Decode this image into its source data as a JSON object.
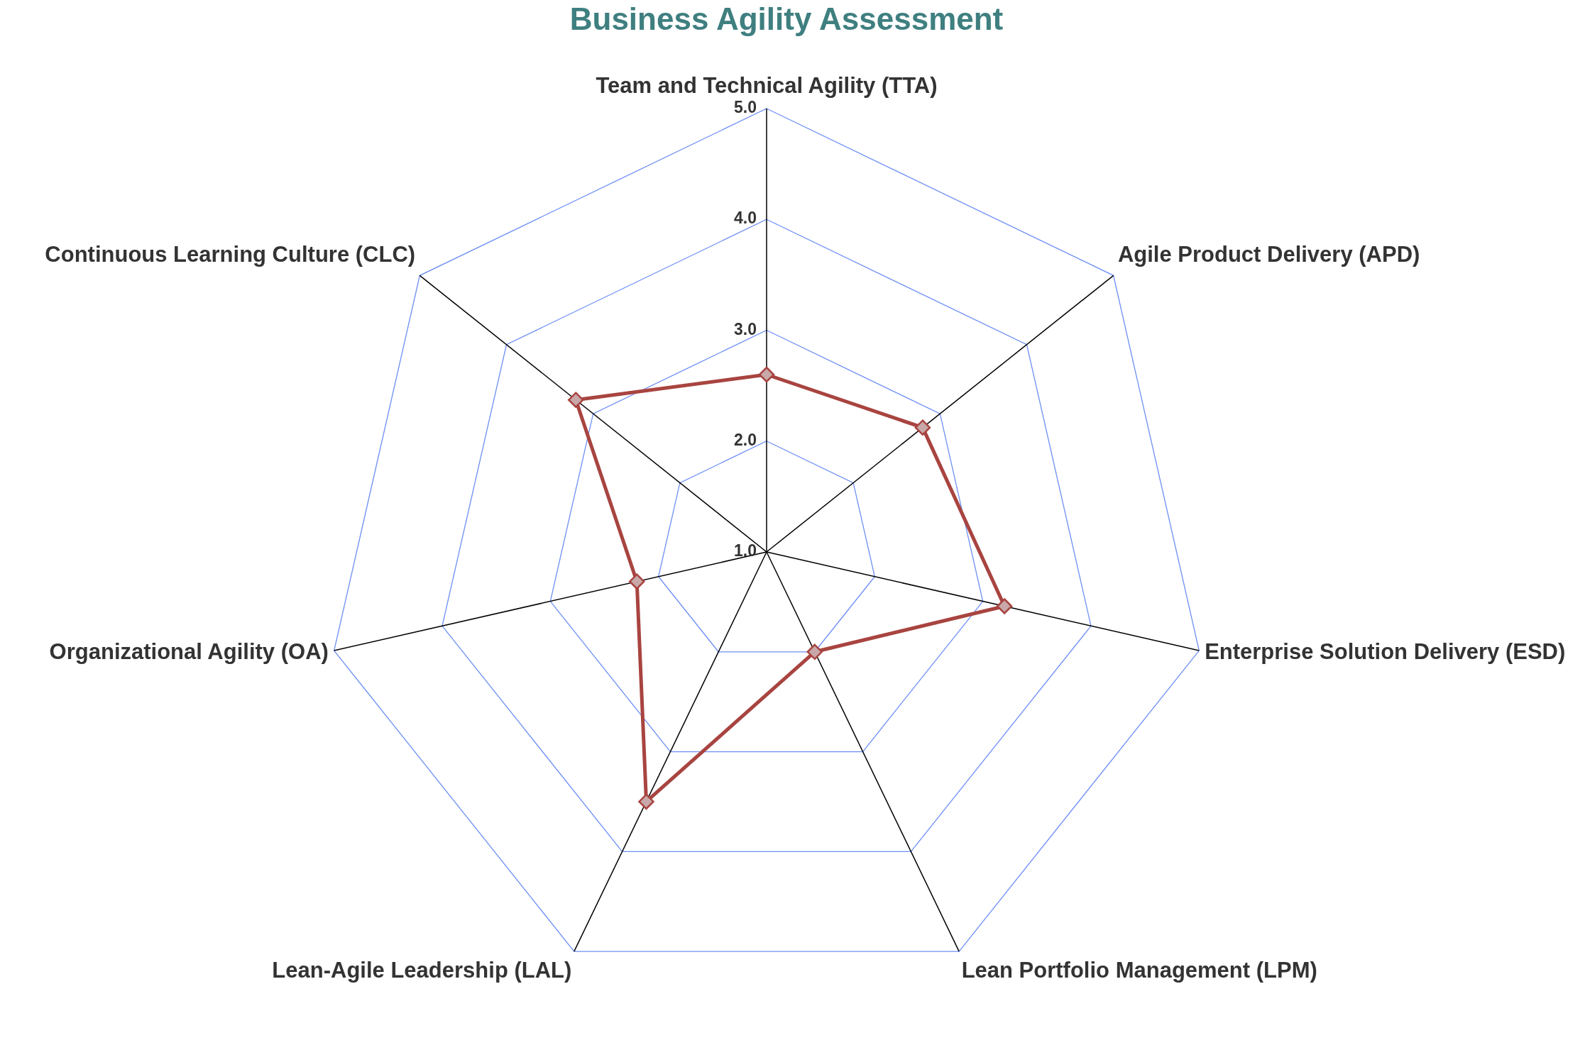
{
  "chart_data": {
    "type": "radar",
    "title": "Business Agility Assessment",
    "categories": [
      "Team and Technical Agility (TTA)",
      "Agile Product Delivery (APD)",
      "Enterprise Solution Delivery (ESD)",
      "Lean Portfolio Management (LPM)",
      "Lean-Agile Leadership (LAL)",
      "Organizational Agility (OA)",
      "Continuous Learning Culture (CLC)"
    ],
    "series": [
      {
        "color": "#a84440",
        "values": [
          2.6,
          2.8,
          3.2,
          2.0,
          3.5,
          2.2,
          3.2
        ]
      }
    ],
    "ylim": [
      1,
      5
    ],
    "yticks": [
      {
        "value": 1,
        "label": "1.0"
      },
      {
        "value": 2,
        "label": "2.0"
      },
      {
        "value": 3,
        "label": "3.0"
      },
      {
        "value": 4,
        "label": "4.0"
      },
      {
        "value": 5,
        "label": "5.0"
      }
    ],
    "grid": true,
    "marker": "diamond",
    "line_style": "solid"
  }
}
